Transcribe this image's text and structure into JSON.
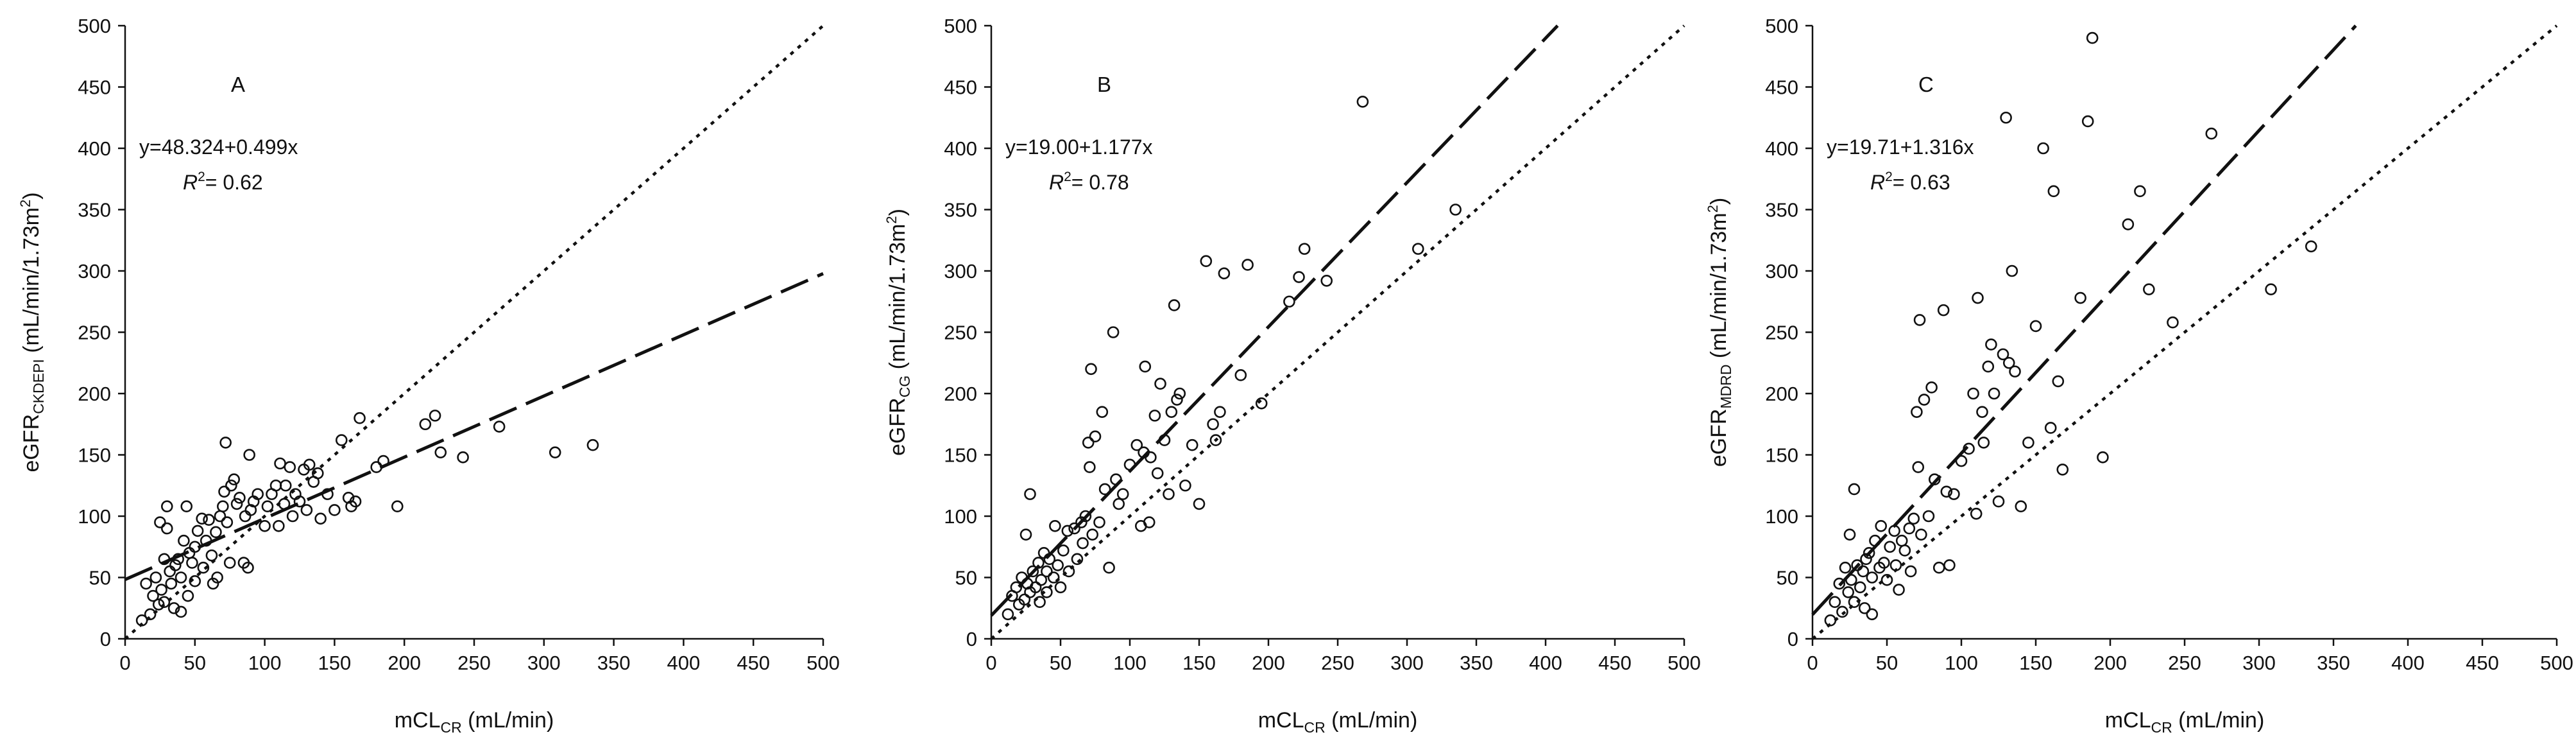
{
  "colors": {
    "ink": "#111111",
    "background": "#ffffff"
  },
  "chart_data": [
    {
      "type": "scatter",
      "panel": "A",
      "ylabel_main": "eGFR",
      "ylabel_sub": "CKDEPI",
      "ylabel_units": " (mL/min/1.73m",
      "ylabel_sup": "2",
      "ylabel_close": ")",
      "xlabel_main": "mCL",
      "xlabel_sub": "CR",
      "xlabel_units": " (mL/min)",
      "xlim": [
        0,
        500
      ],
      "ylim": [
        0,
        500
      ],
      "x_ticks": [
        "0",
        "50",
        "100",
        "150",
        "200",
        "250",
        "300",
        "350",
        "400",
        "450",
        "500"
      ],
      "y_ticks": [
        "0",
        "50",
        "100",
        "150",
        "200",
        "250",
        "300",
        "350",
        "400",
        "450",
        "500"
      ],
      "equation": "y=48.324+0.499x",
      "r2_label": "R",
      "r2_sup": "2",
      "r2_value": "= 0.62",
      "regression": {
        "intercept": 48.324,
        "slope": 0.499
      },
      "identity_line": true,
      "points": [
        [
          12,
          15
        ],
        [
          15,
          45
        ],
        [
          18,
          20
        ],
        [
          20,
          35
        ],
        [
          22,
          50
        ],
        [
          24,
          28
        ],
        [
          25,
          95
        ],
        [
          26,
          40
        ],
        [
          28,
          65
        ],
        [
          28,
          30
        ],
        [
          30,
          108
        ],
        [
          30,
          90
        ],
        [
          32,
          55
        ],
        [
          33,
          45
        ],
        [
          35,
          25
        ],
        [
          36,
          60
        ],
        [
          38,
          65
        ],
        [
          40,
          50
        ],
        [
          40,
          22
        ],
        [
          42,
          80
        ],
        [
          44,
          108
        ],
        [
          45,
          35
        ],
        [
          46,
          70
        ],
        [
          48,
          62
        ],
        [
          50,
          75
        ],
        [
          50,
          47
        ],
        [
          52,
          88
        ],
        [
          55,
          98
        ],
        [
          56,
          58
        ],
        [
          58,
          80
        ],
        [
          60,
          97
        ],
        [
          62,
          68
        ],
        [
          63,
          45
        ],
        [
          65,
          87
        ],
        [
          66,
          50
        ],
        [
          68,
          100
        ],
        [
          70,
          108
        ],
        [
          71,
          120
        ],
        [
          72,
          160
        ],
        [
          73,
          95
        ],
        [
          75,
          62
        ],
        [
          76,
          125
        ],
        [
          78,
          130
        ],
        [
          80,
          110
        ],
        [
          82,
          115
        ],
        [
          85,
          62
        ],
        [
          86,
          100
        ],
        [
          88,
          58
        ],
        [
          89,
          150
        ],
        [
          90,
          105
        ],
        [
          92,
          112
        ],
        [
          95,
          118
        ],
        [
          100,
          92
        ],
        [
          102,
          108
        ],
        [
          105,
          118
        ],
        [
          108,
          125
        ],
        [
          110,
          92
        ],
        [
          111,
          143
        ],
        [
          114,
          110
        ],
        [
          115,
          125
        ],
        [
          118,
          140
        ],
        [
          120,
          100
        ],
        [
          122,
          118
        ],
        [
          125,
          112
        ],
        [
          128,
          138
        ],
        [
          130,
          105
        ],
        [
          132,
          142
        ],
        [
          135,
          128
        ],
        [
          138,
          135
        ],
        [
          140,
          98
        ],
        [
          145,
          118
        ],
        [
          150,
          105
        ],
        [
          155,
          162
        ],
        [
          160,
          115
        ],
        [
          162,
          108
        ],
        [
          165,
          112
        ],
        [
          168,
          180
        ],
        [
          180,
          140
        ],
        [
          185,
          145
        ],
        [
          195,
          108
        ],
        [
          215,
          175
        ],
        [
          222,
          182
        ],
        [
          226,
          152
        ],
        [
          242,
          148
        ],
        [
          268,
          173
        ],
        [
          308,
          152
        ],
        [
          335,
          158
        ]
      ]
    },
    {
      "type": "scatter",
      "panel": "B",
      "ylabel_main": "eGFR",
      "ylabel_sub": "CG",
      "ylabel_units": " (mL/min/1.73m",
      "ylabel_sup": "2",
      "ylabel_close": ")",
      "xlabel_main": "mCL",
      "xlabel_sub": "CR",
      "xlabel_units": " (mL/min)",
      "xlim": [
        0,
        500
      ],
      "ylim": [
        0,
        500
      ],
      "x_ticks": [
        "0",
        "50",
        "100",
        "150",
        "200",
        "250",
        "300",
        "350",
        "400",
        "450",
        "500"
      ],
      "y_ticks": [
        "0",
        "50",
        "100",
        "150",
        "200",
        "250",
        "300",
        "350",
        "400",
        "450",
        "500"
      ],
      "equation": "y=19.00+1.177x",
      "r2_label": "R",
      "r2_sup": "2",
      "r2_value": "= 0.78",
      "regression": {
        "intercept": 19.0,
        "slope": 1.177
      },
      "identity_line": true,
      "points": [
        [
          12,
          20
        ],
        [
          15,
          35
        ],
        [
          18,
          42
        ],
        [
          20,
          28
        ],
        [
          22,
          50
        ],
        [
          24,
          32
        ],
        [
          25,
          85
        ],
        [
          26,
          45
        ],
        [
          28,
          118
        ],
        [
          28,
          38
        ],
        [
          30,
          55
        ],
        [
          32,
          42
        ],
        [
          34,
          62
        ],
        [
          35,
          30
        ],
        [
          36,
          48
        ],
        [
          38,
          70
        ],
        [
          40,
          55
        ],
        [
          40,
          38
        ],
        [
          42,
          65
        ],
        [
          45,
          50
        ],
        [
          46,
          92
        ],
        [
          48,
          60
        ],
        [
          50,
          42
        ],
        [
          52,
          72
        ],
        [
          55,
          88
        ],
        [
          56,
          55
        ],
        [
          60,
          90
        ],
        [
          62,
          65
        ],
        [
          65,
          95
        ],
        [
          66,
          78
        ],
        [
          68,
          100
        ],
        [
          70,
          160
        ],
        [
          71,
          140
        ],
        [
          72,
          220
        ],
        [
          73,
          85
        ],
        [
          75,
          165
        ],
        [
          78,
          95
        ],
        [
          80,
          185
        ],
        [
          82,
          122
        ],
        [
          85,
          58
        ],
        [
          88,
          250
        ],
        [
          90,
          130
        ],
        [
          92,
          110
        ],
        [
          95,
          118
        ],
        [
          100,
          142
        ],
        [
          105,
          158
        ],
        [
          108,
          92
        ],
        [
          110,
          152
        ],
        [
          111,
          222
        ],
        [
          114,
          95
        ],
        [
          115,
          148
        ],
        [
          118,
          182
        ],
        [
          120,
          135
        ],
        [
          122,
          208
        ],
        [
          125,
          162
        ],
        [
          128,
          118
        ],
        [
          130,
          185
        ],
        [
          132,
          272
        ],
        [
          134,
          195
        ],
        [
          136,
          200
        ],
        [
          140,
          125
        ],
        [
          145,
          158
        ],
        [
          150,
          110
        ],
        [
          155,
          308
        ],
        [
          160,
          175
        ],
        [
          162,
          162
        ],
        [
          165,
          185
        ],
        [
          168,
          298
        ],
        [
          180,
          215
        ],
        [
          185,
          305
        ],
        [
          195,
          192
        ],
        [
          215,
          275
        ],
        [
          222,
          295
        ],
        [
          226,
          318
        ],
        [
          242,
          292
        ],
        [
          268,
          438
        ],
        [
          308,
          318
        ],
        [
          335,
          350
        ]
      ]
    },
    {
      "type": "scatter",
      "panel": "C",
      "ylabel_main": "eGFR",
      "ylabel_sub": "MDRD",
      "ylabel_units": " (mL/min/1.73m",
      "ylabel_sup": "2",
      "ylabel_close": ")",
      "xlabel_main": "mCL",
      "xlabel_sub": "CR",
      "xlabel_units": " (mL/min)",
      "xlim": [
        0,
        500
      ],
      "ylim": [
        0,
        500
      ],
      "x_ticks": [
        "0",
        "50",
        "100",
        "150",
        "200",
        "250",
        "300",
        "350",
        "400",
        "450",
        "500"
      ],
      "y_ticks": [
        "0",
        "50",
        "100",
        "150",
        "200",
        "250",
        "300",
        "350",
        "400",
        "450",
        "500"
      ],
      "equation": "y=19.71+1.316x",
      "r2_label": "R",
      "r2_sup": "2",
      "r2_value": "= 0.63",
      "regression": {
        "intercept": 19.71,
        "slope": 1.316
      },
      "identity_line": true,
      "points": [
        [
          12,
          15
        ],
        [
          15,
          30
        ],
        [
          18,
          45
        ],
        [
          20,
          22
        ],
        [
          22,
          58
        ],
        [
          24,
          38
        ],
        [
          25,
          85
        ],
        [
          26,
          48
        ],
        [
          28,
          122
        ],
        [
          28,
          30
        ],
        [
          30,
          60
        ],
        [
          32,
          42
        ],
        [
          34,
          55
        ],
        [
          35,
          25
        ],
        [
          36,
          65
        ],
        [
          38,
          70
        ],
        [
          40,
          50
        ],
        [
          40,
          20
        ],
        [
          42,
          80
        ],
        [
          45,
          58
        ],
        [
          46,
          92
        ],
        [
          48,
          62
        ],
        [
          50,
          48
        ],
        [
          52,
          75
        ],
        [
          55,
          88
        ],
        [
          56,
          60
        ],
        [
          58,
          40
        ],
        [
          60,
          80
        ],
        [
          62,
          72
        ],
        [
          65,
          90
        ],
        [
          66,
          55
        ],
        [
          68,
          98
        ],
        [
          70,
          185
        ],
        [
          71,
          140
        ],
        [
          72,
          260
        ],
        [
          73,
          85
        ],
        [
          75,
          195
        ],
        [
          78,
          100
        ],
        [
          80,
          205
        ],
        [
          82,
          130
        ],
        [
          85,
          58
        ],
        [
          88,
          268
        ],
        [
          90,
          120
        ],
        [
          92,
          60
        ],
        [
          95,
          118
        ],
        [
          100,
          145
        ],
        [
          105,
          155
        ],
        [
          108,
          200
        ],
        [
          110,
          102
        ],
        [
          111,
          278
        ],
        [
          114,
          185
        ],
        [
          115,
          160
        ],
        [
          118,
          222
        ],
        [
          120,
          240
        ],
        [
          122,
          200
        ],
        [
          125,
          112
        ],
        [
          128,
          232
        ],
        [
          130,
          425
        ],
        [
          132,
          225
        ],
        [
          134,
          300
        ],
        [
          136,
          218
        ],
        [
          140,
          108
        ],
        [
          145,
          160
        ],
        [
          150,
          255
        ],
        [
          155,
          400
        ],
        [
          160,
          172
        ],
        [
          162,
          365
        ],
        [
          165,
          210
        ],
        [
          168,
          138
        ],
        [
          180,
          278
        ],
        [
          185,
          422
        ],
        [
          188,
          490
        ],
        [
          195,
          148
        ],
        [
          212,
          338
        ],
        [
          220,
          365
        ],
        [
          226,
          285
        ],
        [
          242,
          258
        ],
        [
          268,
          412
        ],
        [
          308,
          285
        ],
        [
          335,
          320
        ]
      ]
    }
  ]
}
